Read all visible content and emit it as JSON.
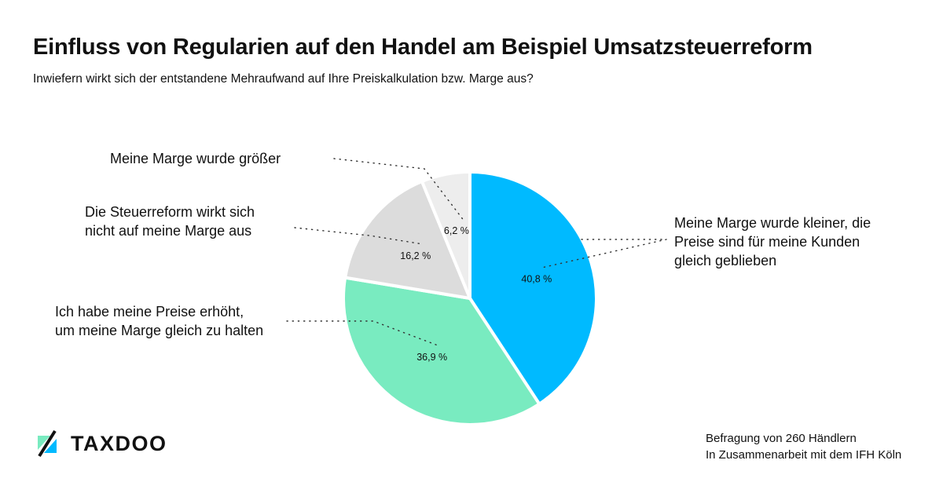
{
  "header": {
    "title": "Einfluss von Regularien auf den Handel am Beispiel Umsatzsteuerreform",
    "subtitle": "Inwiefern wirkt sich der entstandene Mehraufwand auf Ihre Preiskalkulation bzw. Marge aus?"
  },
  "chart_data": {
    "type": "pie",
    "title": "Einfluss von Regularien auf den Handel am Beispiel Umsatzsteuerreform",
    "subtitle": "Inwiefern wirkt sich der entstandene Mehraufwand auf Ihre Preiskalkulation bzw. Marge aus?",
    "start": "12 o'clock",
    "direction": "clockwise",
    "slices": [
      {
        "label_lines": [
          "Meine Marge wurde kleiner, die",
          "Preise sind für meine Kunden",
          "gleich geblieben"
        ],
        "value": 40.8,
        "value_label": "40,8 %",
        "color": "#00BAFF"
      },
      {
        "label_lines": [
          "Ich habe meine Preise erhöht,",
          "um meine Marge gleich zu halten"
        ],
        "value": 36.9,
        "value_label": "36,9 %",
        "color": "#79EBC0"
      },
      {
        "label_lines": [
          "Die Steuerreform wirkt sich",
          "nicht auf meine Marge aus"
        ],
        "value": 16.2,
        "value_label": "16,2 %",
        "color": "#DCDCDC"
      },
      {
        "label_lines": [
          "Meine Marge wurde größer"
        ],
        "value": 6.2,
        "value_label": "6,2 %",
        "color": "#EDEDED"
      }
    ]
  },
  "footer": {
    "logo_text": "TAXDOO",
    "source_line1": "Befragung von 260 Händlern",
    "source_line2": "In Zusammenarbeit mit dem IFH Köln"
  },
  "colors": {
    "logo_blue": "#00BAFF",
    "logo_green": "#79EBC0",
    "text": "#111111",
    "separator": "#ffffff"
  }
}
